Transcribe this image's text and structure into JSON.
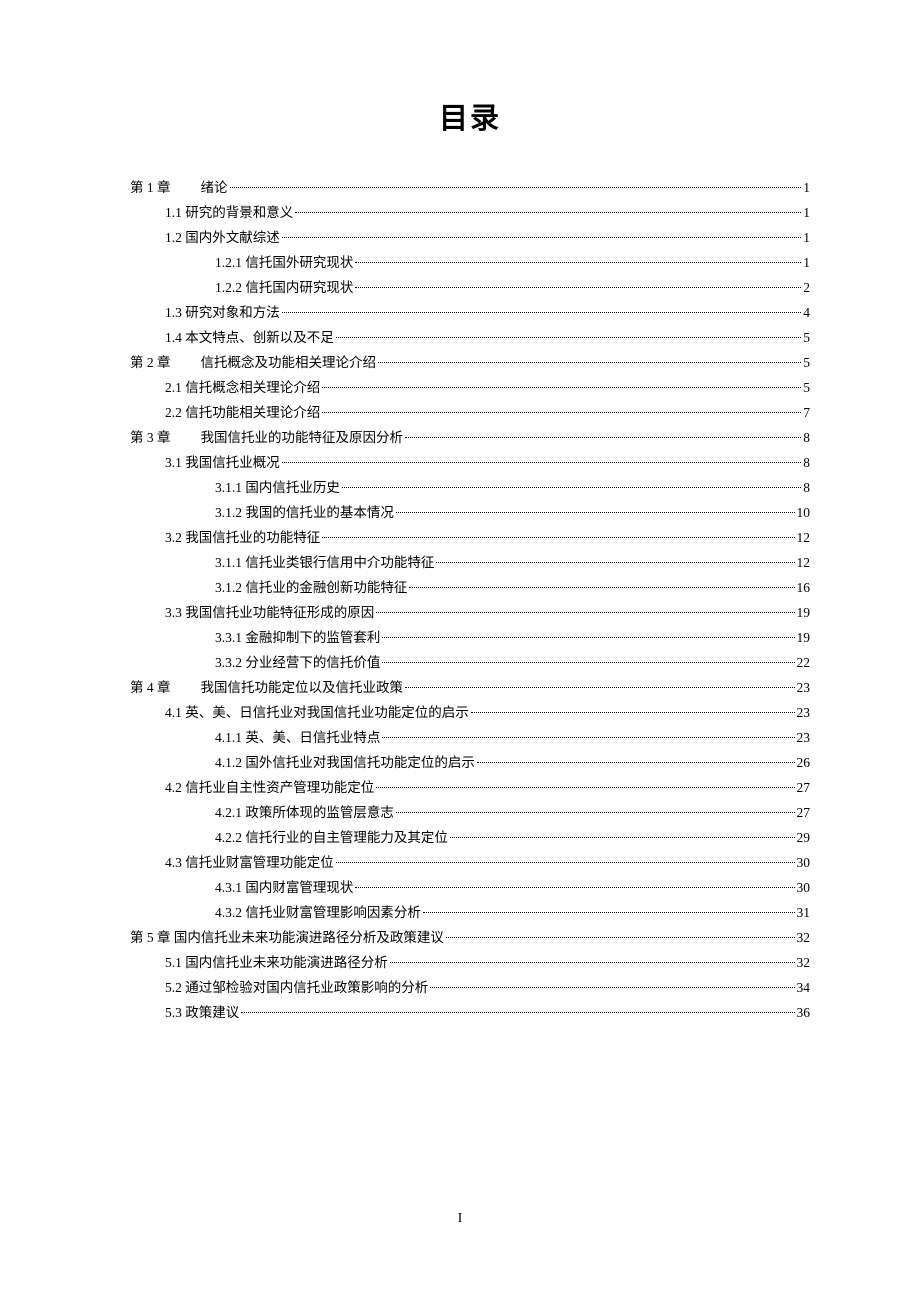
{
  "title": "目录",
  "page_number": "I",
  "entries": [
    {
      "level": 0,
      "prefix": "第 1 章",
      "title": "绪论",
      "page": "1",
      "chapter": true
    },
    {
      "level": 1,
      "prefix": "1.1",
      "title": " 研究的背景和意义",
      "page": "1"
    },
    {
      "level": 1,
      "prefix": "1.2",
      "title": " 国内外文献综述",
      "page": "1"
    },
    {
      "level": 2,
      "prefix": "1.2.1",
      "title": " 信托国外研究现状",
      "page": "1"
    },
    {
      "level": 2,
      "prefix": "1.2.2",
      "title": " 信托国内研究现状",
      "page": "2"
    },
    {
      "level": 1,
      "prefix": "1.3",
      "title": " 研究对象和方法",
      "page": "4"
    },
    {
      "level": 1,
      "prefix": "1.4",
      "title": " 本文特点、创新以及不足",
      "page": "5"
    },
    {
      "level": 0,
      "prefix": "第 2 章",
      "title": "信托概念及功能相关理论介绍",
      "page": "5",
      "chapter": true
    },
    {
      "level": 1,
      "prefix": "2.1",
      "title": " 信托概念相关理论介绍",
      "page": "5"
    },
    {
      "level": 1,
      "prefix": "2.2",
      "title": " 信托功能相关理论介绍",
      "page": "7"
    },
    {
      "level": 0,
      "prefix": "第 3 章",
      "title": "我国信托业的功能特征及原因分析",
      "page": "8",
      "chapter": true
    },
    {
      "level": 1,
      "prefix": "3.1",
      "title": " 我国信托业概况",
      "page": "8"
    },
    {
      "level": 2,
      "prefix": "3.1.1",
      "title": " 国内信托业历史",
      "page": "8"
    },
    {
      "level": 2,
      "prefix": "3.1.2",
      "title": "  我国的信托业的基本情况",
      "page": "10"
    },
    {
      "level": 1,
      "prefix": "3.2",
      "title": " 我国信托业的功能特征",
      "page": "12"
    },
    {
      "level": 2,
      "prefix": "3.1.1",
      "title": " 信托业类银行信用中介功能特征",
      "page": "12"
    },
    {
      "level": 2,
      "prefix": "3.1.2",
      "title": " 信托业的金融创新功能特征",
      "page": "16"
    },
    {
      "level": 1,
      "prefix": "3.3",
      "title": " 我国信托业功能特征形成的原因",
      "page": "19"
    },
    {
      "level": 2,
      "prefix": "3.3.1",
      "title": " 金融抑制下的监管套利",
      "page": "19"
    },
    {
      "level": 2,
      "prefix": "3.3.2",
      "title": " 分业经营下的信托价值",
      "page": "22"
    },
    {
      "level": 0,
      "prefix": "第 4 章",
      "title": "我国信托功能定位以及信托业政策",
      "page": "23",
      "chapter": true
    },
    {
      "level": 1,
      "prefix": "4.1",
      "title": " 英、美、日信托业对我国信托业功能定位的启示",
      "page": "23"
    },
    {
      "level": 2,
      "prefix": "4.1.1",
      "title": "  英、美、日信托业特点",
      "page": "23"
    },
    {
      "level": 2,
      "prefix": "4.1.2",
      "title": "  国外信托业对我国信托功能定位的启示",
      "page": "26"
    },
    {
      "level": 1,
      "prefix": "4.2",
      "title": "  信托业自主性资产管理功能定位",
      "page": "27"
    },
    {
      "level": 2,
      "prefix": "4.2.1",
      "title": " 政策所体现的监管层意志",
      "page": "27"
    },
    {
      "level": 2,
      "prefix": "4.2.2",
      "title": " 信托行业的自主管理能力及其定位",
      "page": "29"
    },
    {
      "level": 1,
      "prefix": "4.3",
      "title": " 信托业财富管理功能定位",
      "page": "30"
    },
    {
      "level": 2,
      "prefix": "4.3.1",
      "title": " 国内财富管理现状",
      "page": "30"
    },
    {
      "level": 2,
      "prefix": "4.3.2",
      "title": "  信托业财富管理影响因素分析",
      "page": "31"
    },
    {
      "level": 0,
      "prefix": "第 5 章",
      "title": "  国内信托业未来功能演进路径分析及政策建议",
      "page": "32",
      "chapter": false
    },
    {
      "level": 1,
      "prefix": "5.1",
      "title": " 国内信托业未来功能演进路径分析",
      "page": "32"
    },
    {
      "level": 1,
      "prefix": "5.2",
      "title": " 通过邹检验对国内信托业政策影响的分析",
      "page": "34"
    },
    {
      "level": 1,
      "prefix": "5.3",
      "title": "  政策建议",
      "page": "36"
    }
  ]
}
